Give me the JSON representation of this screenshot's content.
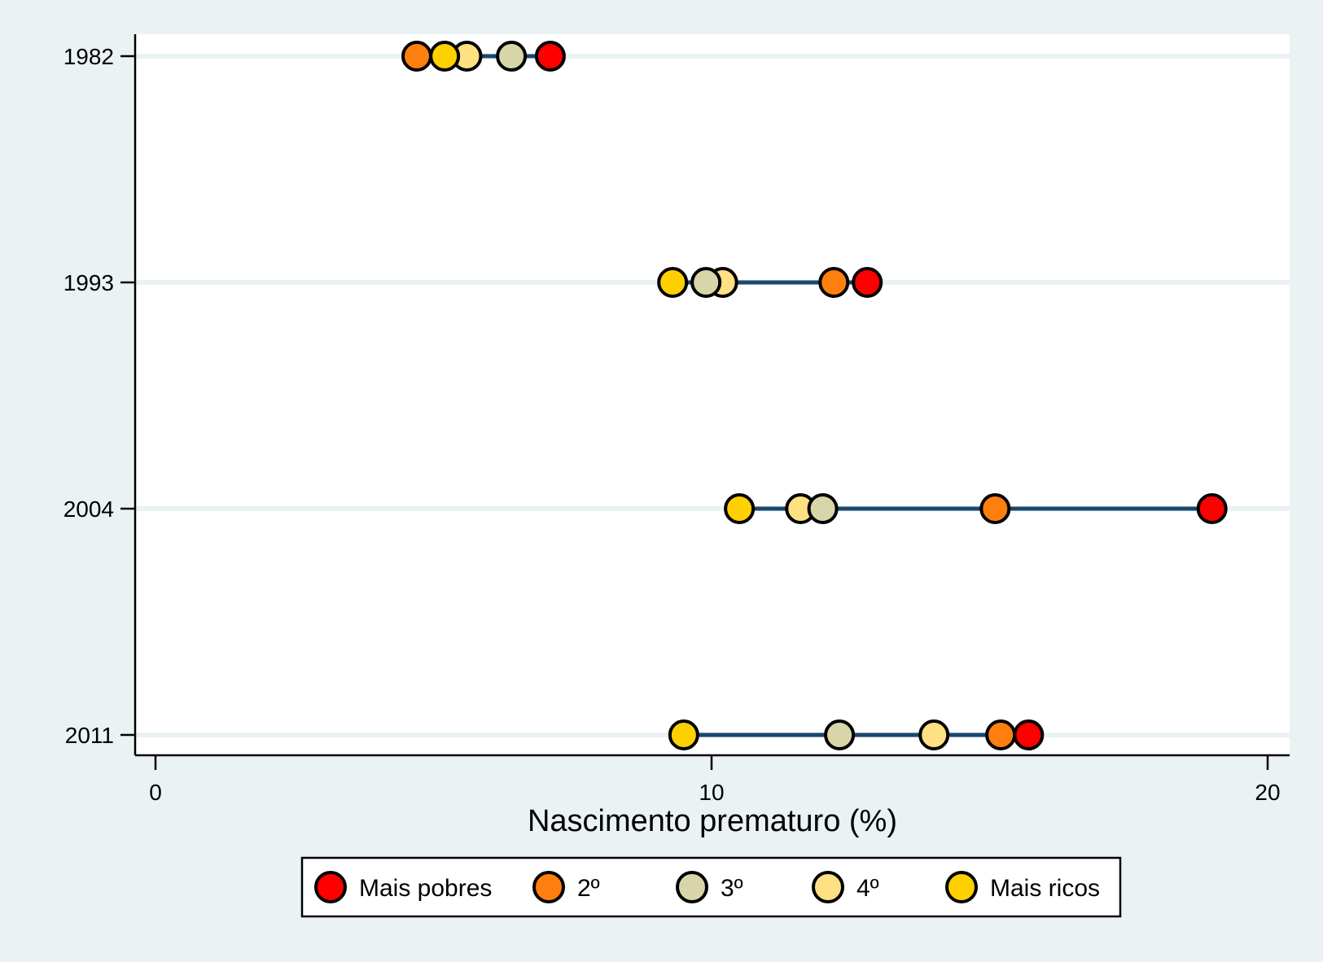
{
  "colors": {
    "background": "#eaf2f3",
    "plot_background": "#ffffff",
    "gridline": "#eaf2f3",
    "connector": "#1a476f",
    "marker_outline": "#000000"
  },
  "chart_data": {
    "type": "scatter",
    "subtype": "dot-plot",
    "xlabel": "Nascimento prematuro (%)",
    "ylabel": "",
    "xlim": [
      -0.4,
      20.4
    ],
    "xticks": [
      "0",
      "10",
      "20"
    ],
    "xtick_values": [
      0,
      10,
      20
    ],
    "categories": [
      "1982",
      "1993",
      "2004",
      "2011"
    ],
    "grid": "horizontal",
    "legend_position": "bottom",
    "series": [
      {
        "name": "Mais pobres",
        "color": "#ff0000",
        "values": [
          7.1,
          12.8,
          19.0,
          15.7
        ]
      },
      {
        "name": "2º",
        "color": "#ff7f0e",
        "values": [
          4.7,
          12.2,
          15.1,
          15.2
        ]
      },
      {
        "name": "3º",
        "color": "#d8d6a8",
        "values": [
          6.4,
          9.9,
          12.0,
          12.3
        ]
      },
      {
        "name": "4º",
        "color": "#ffe083",
        "values": [
          5.6,
          10.2,
          11.6,
          14.0
        ]
      },
      {
        "name": "Mais ricos",
        "color": "#ffd000",
        "values": [
          5.2,
          9.3,
          10.5,
          9.5
        ]
      }
    ]
  }
}
